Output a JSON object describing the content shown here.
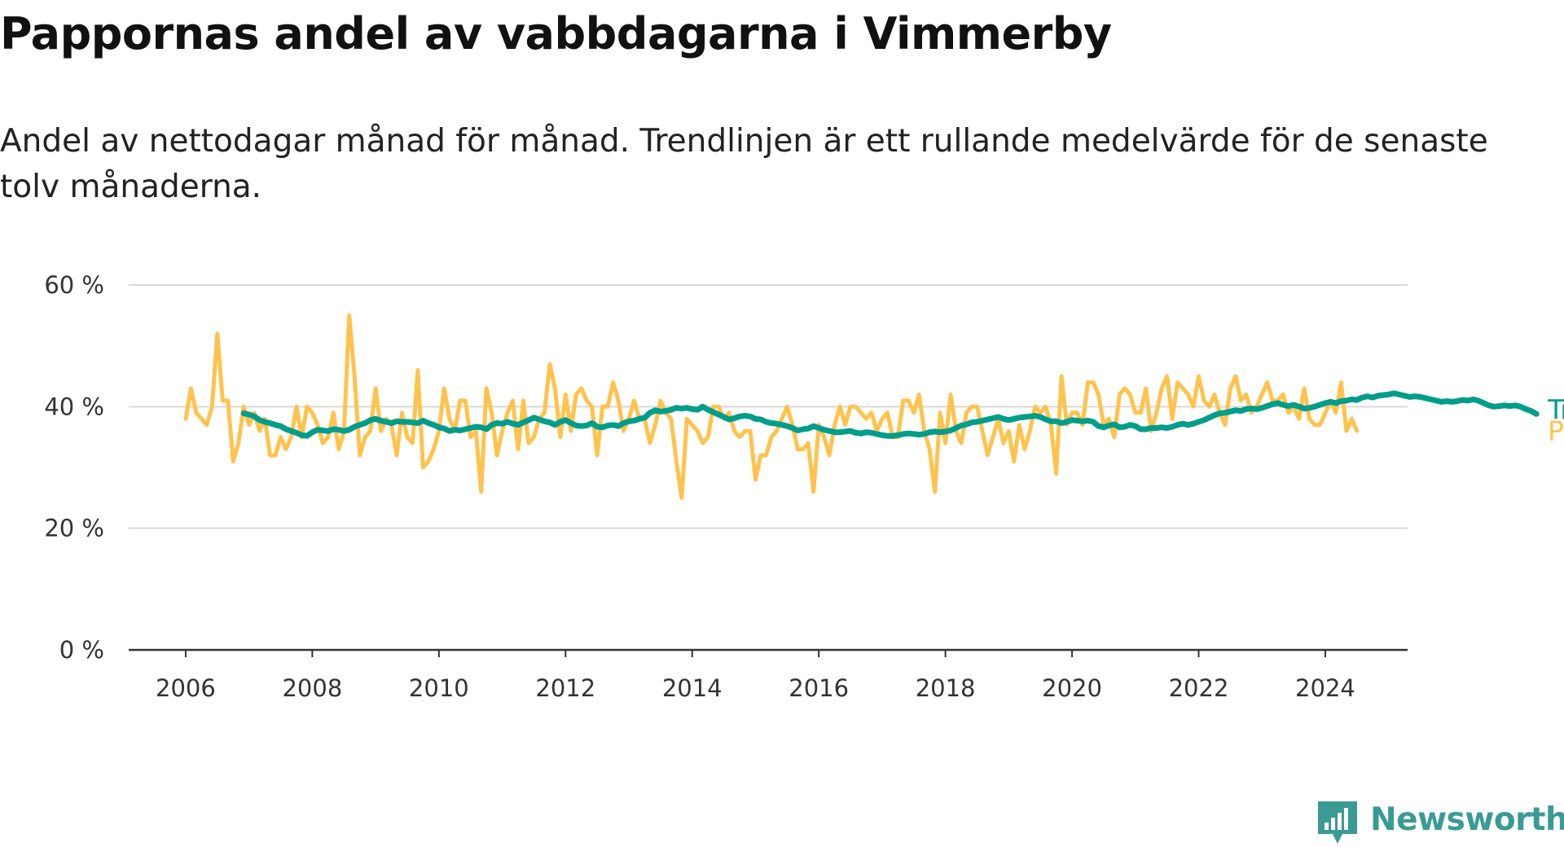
{
  "title": "Pappornas andel av vabbdagarna i Vimmerby",
  "subtitle": "Andel av nettodagar månad för månad. Trendlinjen är ett rullande medelvärde för de senaste tolv månaderna.",
  "brand": {
    "name": "Newsworthy",
    "color": "#3a9a94",
    "icon": "bar-chart-logo-icon"
  },
  "colors": {
    "monthly": "#ffc34d",
    "trend": "#009d8a",
    "grid": "#d9d9d9",
    "axis": "#333333"
  },
  "chart_data": {
    "type": "line",
    "title": "Pappornas andel av vabbdagarna i Vimmerby",
    "xlabel": "",
    "ylabel": "",
    "ylim": [
      0,
      60
    ],
    "xlim": [
      2005.1,
      2025.3
    ],
    "yticks": [
      0,
      20,
      40,
      60
    ],
    "ytick_labels": [
      "0 %",
      "20 %",
      "40 %",
      "60 %"
    ],
    "xticks": [
      2006,
      2008,
      2010,
      2012,
      2014,
      2016,
      2018,
      2020,
      2022,
      2024
    ],
    "xtick_labels": [
      "2006",
      "2008",
      "2010",
      "2012",
      "2014",
      "2016",
      "2018",
      "2020",
      "2022",
      "2024"
    ],
    "grid": true,
    "legend": "end-of-line labels, right",
    "series": [
      {
        "name": "Per månad",
        "color": "#ffc34d",
        "x_start": 2006.0,
        "x_step_months": 1,
        "values": [
          38,
          43,
          39,
          38,
          37,
          40,
          52,
          41,
          41,
          31,
          34,
          40,
          37,
          39,
          36,
          38,
          32,
          32,
          35,
          33,
          35,
          40,
          35,
          40,
          39,
          37,
          34,
          35,
          39,
          33,
          36,
          55,
          45,
          32,
          35,
          36,
          43,
          36,
          38,
          37,
          32,
          39,
          35,
          34,
          46,
          30,
          31,
          33,
          36,
          43,
          38,
          36,
          41,
          41,
          35,
          36,
          26,
          43,
          39,
          32,
          36,
          39,
          41,
          33,
          41,
          34,
          35,
          38,
          39,
          47,
          43,
          35,
          42,
          36,
          42,
          43,
          41,
          40,
          32,
          40,
          40,
          44,
          41,
          36,
          38,
          41,
          38,
          38,
          34,
          37,
          41,
          39,
          38,
          31,
          25,
          38,
          37,
          36,
          34,
          35,
          40,
          40,
          38,
          39,
          36,
          35,
          36,
          36,
          28,
          32,
          32,
          35,
          36,
          38,
          40,
          37,
          33,
          33,
          34,
          26,
          37,
          35,
          32,
          37,
          40,
          37,
          40,
          40,
          39,
          38,
          39,
          36,
          38,
          39,
          35,
          35,
          41,
          41,
          39,
          42,
          36,
          33,
          26,
          39,
          34,
          42,
          36,
          34,
          39,
          40,
          40,
          36,
          32,
          35,
          38,
          34,
          36,
          31,
          37,
          33,
          36,
          40,
          39,
          40,
          37,
          29,
          45,
          37,
          39,
          39,
          37,
          44,
          44,
          42,
          37,
          38,
          35,
          42,
          43,
          42,
          39,
          39,
          43,
          36,
          39,
          43,
          45,
          38,
          44,
          43,
          42,
          40,
          45,
          41,
          40,
          42,
          39,
          37,
          43,
          45,
          41,
          42,
          39,
          40,
          42,
          44,
          41,
          41,
          42,
          39,
          40,
          38,
          43,
          38,
          37,
          37,
          39,
          41,
          39,
          44,
          36,
          38,
          36
        ]
      },
      {
        "name": "Trend",
        "color": "#009d8a",
        "x_start": 2006.917,
        "x_step_months": 1,
        "values": [
          38.9,
          38.7,
          38.4,
          37.8,
          37.5,
          37.3,
          37.0,
          36.8,
          36.3,
          36.0,
          35.7,
          35.3,
          35.2,
          35.8,
          36.2,
          36.1,
          36.0,
          36.3,
          36.2,
          36.0,
          36.2,
          36.7,
          37.0,
          37.3,
          37.8,
          38.0,
          37.7,
          37.5,
          37.3,
          37.6,
          37.5,
          37.5,
          37.4,
          37.3,
          37.7,
          37.3,
          37.0,
          36.6,
          36.4,
          36.0,
          36.2,
          36.1,
          36.3,
          36.5,
          36.7,
          36.6,
          36.3,
          37.0,
          37.3,
          37.2,
          37.5,
          37.2,
          37.0,
          37.4,
          37.8,
          38.2,
          37.9,
          37.6,
          37.4,
          37.0,
          37.5,
          37.8,
          37.3,
          36.9,
          36.8,
          36.9,
          37.3,
          36.7,
          36.6,
          36.9,
          37.0,
          36.8,
          37.3,
          37.6,
          37.7,
          38.0,
          38.2,
          39.0,
          39.4,
          39.2,
          39.3,
          39.5,
          39.8,
          39.7,
          39.8,
          39.6,
          39.5,
          40.0,
          39.5,
          39.1,
          38.7,
          38.3,
          37.9,
          38.1,
          38.4,
          38.5,
          38.4,
          38.0,
          37.9,
          37.5,
          37.3,
          37.2,
          37.0,
          36.8,
          36.5,
          36.1,
          36.3,
          36.4,
          36.8,
          36.5,
          36.2,
          36.0,
          35.8,
          35.8,
          35.9,
          36.0,
          35.7,
          35.6,
          35.8,
          35.7,
          35.5,
          35.3,
          35.2,
          35.2,
          35.3,
          35.5,
          35.6,
          35.5,
          35.4,
          35.5,
          35.8,
          35.9,
          35.8,
          35.9,
          36.1,
          36.5,
          36.9,
          37.1,
          37.4,
          37.5,
          37.7,
          37.9,
          38.1,
          38.3,
          38.0,
          37.8,
          38.0,
          38.2,
          38.3,
          38.4,
          38.5,
          38.3,
          37.9,
          37.6,
          37.6,
          37.3,
          37.5,
          37.8,
          37.7,
          37.6,
          37.7,
          37.5,
          36.8,
          36.6,
          36.9,
          37.1,
          36.6,
          36.7,
          37.0,
          36.8,
          36.3,
          36.3,
          36.5,
          36.5,
          36.6,
          36.5,
          36.7,
          37.0,
          37.2,
          37.0,
          37.2,
          37.5,
          37.8,
          38.2,
          38.6,
          38.9,
          39.0,
          39.2,
          39.4,
          39.3,
          39.6,
          39.7,
          39.6,
          39.8,
          40.1,
          40.4,
          40.6,
          40.3,
          40.1,
          40.3,
          40.0,
          39.7,
          39.8,
          40.0,
          40.3,
          40.6,
          40.8,
          40.6,
          40.9,
          41.0,
          41.2,
          41.1,
          41.5,
          41.7,
          41.5,
          41.8,
          41.9,
          42.0,
          42.2,
          42.0,
          41.8,
          41.6,
          41.7,
          41.6,
          41.4,
          41.2,
          41.0,
          40.8,
          40.9,
          40.8,
          40.9,
          41.1,
          41.0,
          41.2,
          41.0,
          40.6,
          40.2,
          40.0,
          40.1,
          40.2,
          40.1,
          40.2,
          40.0,
          39.6,
          39.3,
          38.8
        ]
      }
    ]
  }
}
